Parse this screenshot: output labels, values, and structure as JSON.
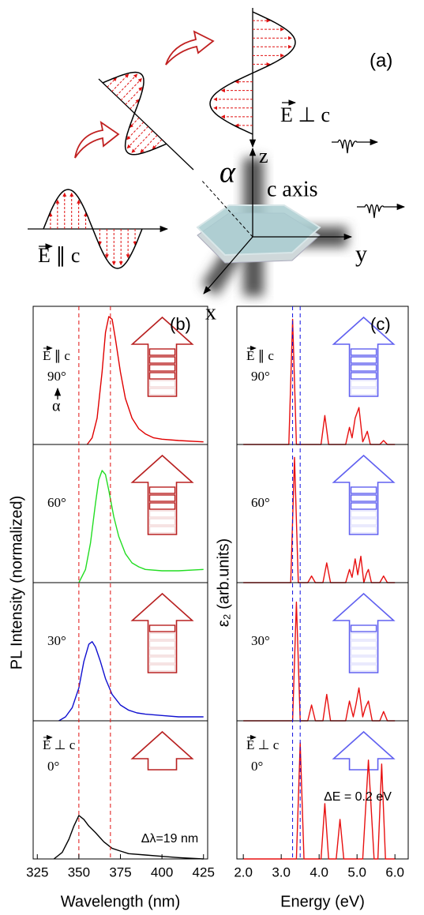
{
  "figure_a": {
    "label": "(a)",
    "e_perp": "E ⊥ c",
    "e_par": "E ∥ c",
    "alpha": "α",
    "c_axis": "c axis",
    "z": "z",
    "y": "y",
    "x": "x"
  },
  "chart_data": [
    {
      "type": "line",
      "panel_label": "(b)",
      "xlabel": "Wavelength (nm)",
      "ylabel": "PL Intensity (normalized)",
      "xlim": [
        322.5,
        427.5
      ],
      "xticks": [
        325,
        350,
        375,
        400,
        425
      ],
      "ylim": [
        0,
        1
      ],
      "vlines": [
        350,
        369
      ],
      "vline_color": "#e01010",
      "arrow_color": "#b82020",
      "annotation": "Δλ=19 nm",
      "panels": [
        {
          "angle": "90°",
          "field": "E ∥ c",
          "alpha": "α",
          "series": [
            {
              "color": "#e00000",
              "x": [
                355,
                358,
                361,
                364,
                366,
                368,
                370,
                372,
                375,
                378,
                382,
                386,
                390,
                395,
                400,
                410,
                425
              ],
              "values": [
                0,
                0.05,
                0.2,
                0.55,
                0.85,
                0.97,
                0.95,
                0.8,
                0.55,
                0.35,
                0.2,
                0.12,
                0.08,
                0.05,
                0.04,
                0.03,
                0.02
              ]
            }
          ]
        },
        {
          "angle": "60°",
          "series": [
            {
              "color": "#22dd22",
              "x": [
                350,
                354,
                357,
                360,
                362,
                364,
                366,
                368,
                371,
                374,
                378,
                382,
                386,
                390,
                400,
                410,
                425
              ],
              "values": [
                0,
                0.1,
                0.3,
                0.6,
                0.78,
                0.85,
                0.82,
                0.7,
                0.5,
                0.35,
                0.22,
                0.15,
                0.12,
                0.1,
                0.09,
                0.09,
                0.1
              ]
            }
          ]
        },
        {
          "angle": "30°",
          "series": [
            {
              "color": "#1010d0",
              "x": [
                338,
                342,
                346,
                350,
                353,
                356,
                358,
                360,
                363,
                366,
                370,
                375,
                380,
                385,
                390,
                400,
                410,
                425
              ],
              "values": [
                0,
                0.03,
                0.1,
                0.25,
                0.45,
                0.58,
                0.6,
                0.56,
                0.45,
                0.32,
                0.2,
                0.12,
                0.08,
                0.06,
                0.05,
                0.04,
                0.03,
                0.03
              ]
            }
          ]
        },
        {
          "angle": "0°",
          "field": "E ⊥ c",
          "series": [
            {
              "color": "#000000",
              "x": [
                335,
                340,
                344,
                347,
                350,
                353,
                356,
                360,
                365,
                370,
                375,
                380,
                390,
                400,
                410,
                425
              ],
              "values": [
                0,
                0.05,
                0.15,
                0.25,
                0.33,
                0.3,
                0.25,
                0.2,
                0.13,
                0.08,
                0.06,
                0.04,
                0.03,
                0.02,
                0.01,
                0
              ]
            }
          ]
        }
      ]
    },
    {
      "type": "line",
      "panel_label": "(c)",
      "xlabel": "Energy (eV)",
      "ylabel": "ε₂ (arb.units)",
      "xlim": [
        1.83,
        6.35
      ],
      "xticks": [
        {
          "value": 2,
          "label": "2.0"
        },
        {
          "value": 3,
          "label": "3.0"
        },
        {
          "value": 4,
          "label": "4.0"
        },
        {
          "value": 5,
          "label": "5.0"
        },
        {
          "value": 6,
          "label": "6.0"
        }
      ],
      "ylim": [
        0,
        1
      ],
      "vlines": [
        3.3,
        3.5
      ],
      "vline_color": "#1010e0",
      "arrow_color": "#6060f0",
      "annotation": "ΔE = 0.2 eV",
      "panels": [
        {
          "angle": "90°",
          "field": "E ∥ c",
          "series": [
            {
              "color": "#e81010",
              "x": [
                2.0,
                3.2,
                3.3,
                3.4,
                4.05,
                4.15,
                4.25,
                4.7,
                4.8,
                4.87,
                4.95,
                5.05,
                5.15,
                5.2,
                5.27,
                5.35,
                5.6,
                5.7,
                5.8,
                6.0
              ],
              "values": [
                0,
                0,
                0.95,
                0,
                0,
                0.22,
                0,
                0,
                0.13,
                0.05,
                0.2,
                0.28,
                0.02,
                0.05,
                0.1,
                0,
                0,
                0.03,
                0,
                0
              ]
            }
          ]
        },
        {
          "angle": "60°",
          "series": [
            {
              "color": "#e81010",
              "x": [
                2.0,
                3.25,
                3.35,
                3.45,
                3.7,
                3.8,
                3.9,
                4.1,
                4.2,
                4.3,
                4.7,
                4.8,
                4.87,
                4.95,
                5.02,
                5.1,
                5.18,
                5.25,
                5.3,
                5.38,
                5.6,
                5.7,
                5.8,
                6.0
              ],
              "values": [
                0,
                0,
                0.95,
                0,
                0,
                0.05,
                0,
                0,
                0.15,
                0,
                0,
                0.1,
                0.04,
                0.18,
                0.06,
                0.2,
                0,
                0.07,
                0.1,
                0,
                0,
                0.05,
                0,
                0
              ]
            }
          ]
        },
        {
          "angle": "30°",
          "series": [
            {
              "color": "#e81010",
              "x": [
                2.0,
                3.3,
                3.4,
                3.5,
                3.7,
                3.8,
                3.9,
                4.1,
                4.2,
                4.3,
                4.7,
                4.8,
                4.9,
                4.97,
                5.05,
                5.15,
                5.22,
                5.3,
                5.4,
                5.6,
                5.7,
                5.8,
                6.0
              ],
              "values": [
                0,
                0,
                0.9,
                0,
                0,
                0.12,
                0,
                0,
                0.2,
                0,
                0,
                0.15,
                0.03,
                0.12,
                0.25,
                0.03,
                0.1,
                0.15,
                0,
                0,
                0.07,
                0,
                0
              ]
            }
          ]
        },
        {
          "angle": "0°",
          "field": "E ⊥ c",
          "series": [
            {
              "color": "#e81010",
              "x": [
                2.0,
                3.4,
                3.5,
                3.6,
                4.05,
                4.15,
                4.25,
                4.45,
                4.55,
                4.65,
                5.15,
                5.3,
                5.45,
                5.55,
                5.65,
                5.75,
                6.0
              ],
              "values": [
                0,
                0,
                0.88,
                0,
                0,
                0.42,
                0,
                0,
                0.3,
                0,
                0,
                0.75,
                0,
                0,
                0.72,
                0,
                0
              ]
            }
          ]
        }
      ]
    }
  ]
}
